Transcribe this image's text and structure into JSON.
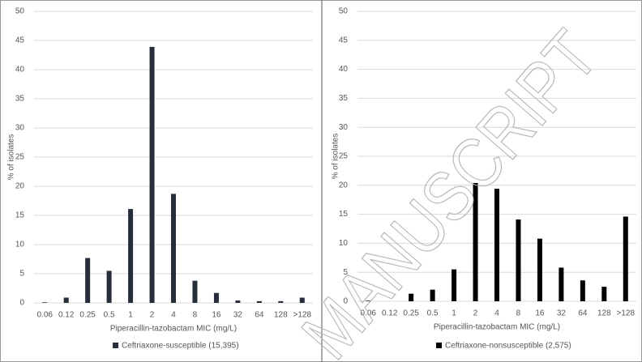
{
  "chart_data": [
    {
      "type": "bar",
      "y_label": "% of isolates",
      "x_label": "Piperacillin-tazobactam MIC (mg/L)",
      "categories": [
        "0.06",
        "0.12",
        "0.25",
        "0.5",
        "1",
        "2",
        "4",
        "8",
        "16",
        "32",
        "64",
        "128",
        ">128"
      ],
      "series": [
        {
          "name": "Ceftriaxone-susceptible (15,395)",
          "color": "#262e3b",
          "values": [
            0.1,
            0.9,
            7.7,
            5.5,
            16.1,
            43.9,
            18.7,
            3.8,
            1.7,
            0.4,
            0.3,
            0.3,
            0.9
          ]
        }
      ],
      "ylim": [
        0,
        50
      ],
      "yticks": [
        0,
        5,
        10,
        15,
        20,
        25,
        30,
        35,
        40,
        45,
        50
      ],
      "grid": true
    },
    {
      "type": "bar",
      "y_label": "% of isolates",
      "x_label": "Piperacillin-tazobactam MIC (mg/L)",
      "categories": [
        "0.06",
        "0.12",
        "0.25",
        "0.5",
        "1",
        "2",
        "4",
        "8",
        "16",
        "32",
        "64",
        "128",
        ">128"
      ],
      "series": [
        {
          "name": "Ceftriaxone-nonsusceptible (2,575)",
          "color": "#000000",
          "values": [
            0.1,
            0,
            1.3,
            2.0,
            5.5,
            20.4,
            19.4,
            14.1,
            10.8,
            5.8,
            3.6,
            2.5,
            14.6
          ]
        }
      ],
      "ylim": [
        0,
        50
      ],
      "yticks": [
        0,
        5,
        10,
        15,
        20,
        25,
        30,
        35,
        40,
        45,
        50
      ],
      "grid": true
    }
  ],
  "watermark": "MANUSCRIPT"
}
